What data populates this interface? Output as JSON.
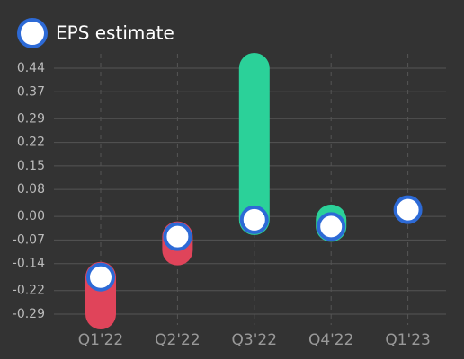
{
  "chart_data": {
    "type": "eps",
    "categories": [
      "Q1'22",
      "Q2'22",
      "Q3'22",
      "Q4'22",
      "Q1'23"
    ],
    "series": [
      {
        "name": "EPS estimate",
        "color": "#ffffff",
        "stroke": "#2d6ad6",
        "values": [
          -0.18,
          -0.06,
          -0.01,
          -0.03,
          0.02
        ]
      }
    ],
    "actual_values": [
      -0.29,
      -0.1,
      0.44,
      -0.01,
      null
    ],
    "beat_color": "#2bd199",
    "miss_color": "#e0445a",
    "ylim": [
      -0.29,
      0.44
    ],
    "yticks": [
      0.44,
      0.37,
      0.29,
      0.22,
      0.15,
      0.08,
      {
        "value": 0,
        "label": "0.00"
      },
      -0.07,
      -0.14,
      -0.22,
      -0.29
    ],
    "grid": true
  }
}
